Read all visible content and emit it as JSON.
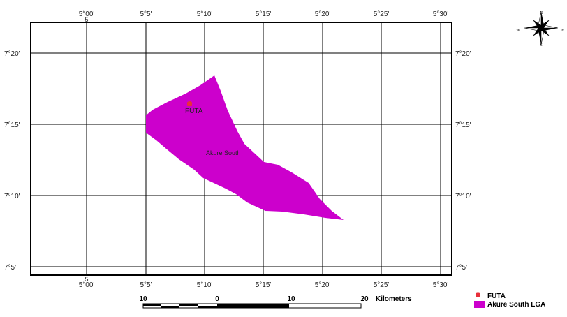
{
  "map": {
    "top_lon_labels": [
      "5°00'",
      "5°5'",
      "5°10'",
      "5°15'",
      "5°20'",
      "5°25'",
      "5°30'"
    ],
    "bottom_lon_labels": [
      "5°00'",
      "5°5'",
      "5°10'",
      "5°15'",
      "5°20'",
      "5°25'",
      "5°30'"
    ],
    "zone_label_top": "5",
    "zone_label_bottom": "5",
    "left_lat_labels": [
      "7°20'",
      "7°15'",
      "7°10'",
      "7°5'"
    ],
    "right_lat_labels": [
      "7°20'",
      "7°15'",
      "7°10'",
      "7°5'"
    ],
    "region_label": "Akure South",
    "point_label": "FUTA",
    "region_color": "#cc00cc",
    "point_color": "#e8303a"
  },
  "compass": {
    "north": "N",
    "south": "S",
    "east": "E",
    "west": "W"
  },
  "scale_bar": {
    "labels": [
      "10",
      "0",
      "10",
      "20"
    ],
    "unit": "Kilometers"
  },
  "legend": {
    "items": [
      {
        "label": "FUTA",
        "icon": "campus-marker-icon",
        "color": "#e8303a"
      },
      {
        "label": "Akure South LGA",
        "icon": "region-swatch",
        "color": "#cc00cc"
      }
    ]
  }
}
